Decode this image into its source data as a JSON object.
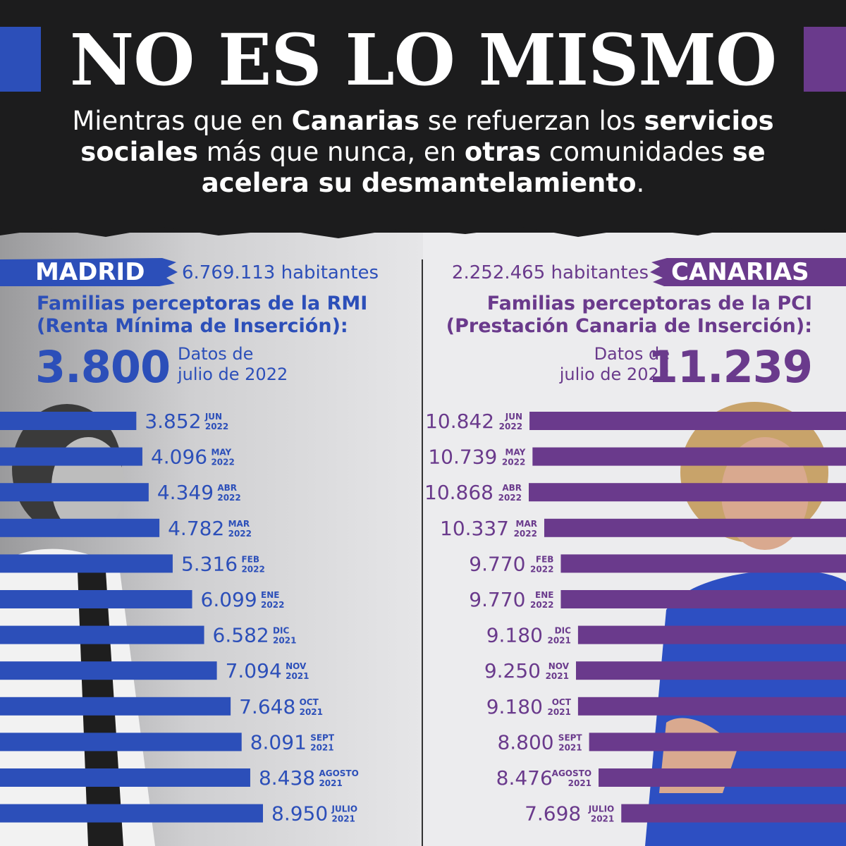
{
  "header": {
    "title": "NO ES LO MISMO",
    "subtitle_parts": [
      {
        "text": "Mientras que en ",
        "bold": false
      },
      {
        "text": "Canarias",
        "bold": true
      },
      {
        "text": " se refuerzan los ",
        "bold": false
      },
      {
        "text": "servicios sociales",
        "bold": true
      },
      {
        "text": " más que nunca, en ",
        "bold": false
      },
      {
        "text": "otras",
        "bold": true
      },
      {
        "text": " comunidades ",
        "bold": false
      },
      {
        "text": "se acelera su desmantelamiento",
        "bold": true
      },
      {
        "text": ".",
        "bold": false
      }
    ]
  },
  "colors": {
    "madrid_blue": "#2c4fb9",
    "canarias_purple": "#6a3a8c",
    "banner_dark": "#1c1c1d"
  },
  "madrid": {
    "name": "MADRID",
    "habitantes": "6.769.113 habitantes",
    "label_line1": "Familias perceptoras de la RMI",
    "label_line2": "(Renta Mínima de Inserción):",
    "current_value": "3.800",
    "datos_line1": "Datos de",
    "datos_line2": "julio de 2022"
  },
  "canarias": {
    "name": "CANARIAS",
    "habitantes": "2.252.465 habitantes",
    "label_line1": "Familias perceptoras de la PCI",
    "label_line2": "(Prestación Canaria de Inserción):",
    "current_value": "11.239",
    "datos_line1": "Datos de",
    "datos_line2": "julio de 2022"
  },
  "chart_data": [
    {
      "type": "bar",
      "series": [
        {
          "name": "MADRID",
          "values": [
            3852,
            4096,
            4349,
            4782,
            5316,
            6099,
            6582,
            7094,
            7648,
            8091,
            8438,
            8950
          ]
        }
      ],
      "labels": [
        "3.852",
        "4.096",
        "4.349",
        "4.782",
        "5.316",
        "6.099",
        "6.582",
        "7.094",
        "7.648",
        "8.091",
        "8.438",
        "8.950"
      ],
      "categories": [
        {
          "month": "JUN",
          "year": "2022"
        },
        {
          "month": "MAY",
          "year": "2022"
        },
        {
          "month": "ABR",
          "year": "2022"
        },
        {
          "month": "MAR",
          "year": "2022"
        },
        {
          "month": "FEB",
          "year": "2022"
        },
        {
          "month": "ENE",
          "year": "2022"
        },
        {
          "month": "DIC",
          "year": "2021"
        },
        {
          "month": "NOV",
          "year": "2021"
        },
        {
          "month": "OCT",
          "year": "2021"
        },
        {
          "month": "SEPT",
          "year": "2021"
        },
        {
          "month": "AGOSTO",
          "year": "2021"
        },
        {
          "month": "JULIO",
          "year": "2021"
        }
      ],
      "orientation": "horizontal",
      "grid": false
    },
    {
      "type": "bar",
      "series": [
        {
          "name": "CANARIAS",
          "values": [
            10842,
            10739,
            10868,
            10337,
            9770,
            9770,
            9180,
            9250,
            9180,
            8800,
            8476,
            7698
          ]
        }
      ],
      "labels": [
        "10.842",
        "10.739",
        "10.868",
        "10.337",
        "9.770",
        "9.770",
        "9.180",
        "9.250",
        "9.180",
        "8.800",
        "8.476",
        "7.698"
      ],
      "categories": [
        {
          "month": "JUN",
          "year": "2022"
        },
        {
          "month": "MAY",
          "year": "2022"
        },
        {
          "month": "ABR",
          "year": "2022"
        },
        {
          "month": "MAR",
          "year": "2022"
        },
        {
          "month": "FEB",
          "year": "2022"
        },
        {
          "month": "ENE",
          "year": "2022"
        },
        {
          "month": "DIC",
          "year": "2021"
        },
        {
          "month": "NOV",
          "year": "2021"
        },
        {
          "month": "OCT",
          "year": "2021"
        },
        {
          "month": "SEPT",
          "year": "2021"
        },
        {
          "month": "AGOSTO",
          "year": "2021"
        },
        {
          "month": "JULIO",
          "year": "2021"
        }
      ],
      "orientation": "horizontal",
      "grid": false
    }
  ]
}
